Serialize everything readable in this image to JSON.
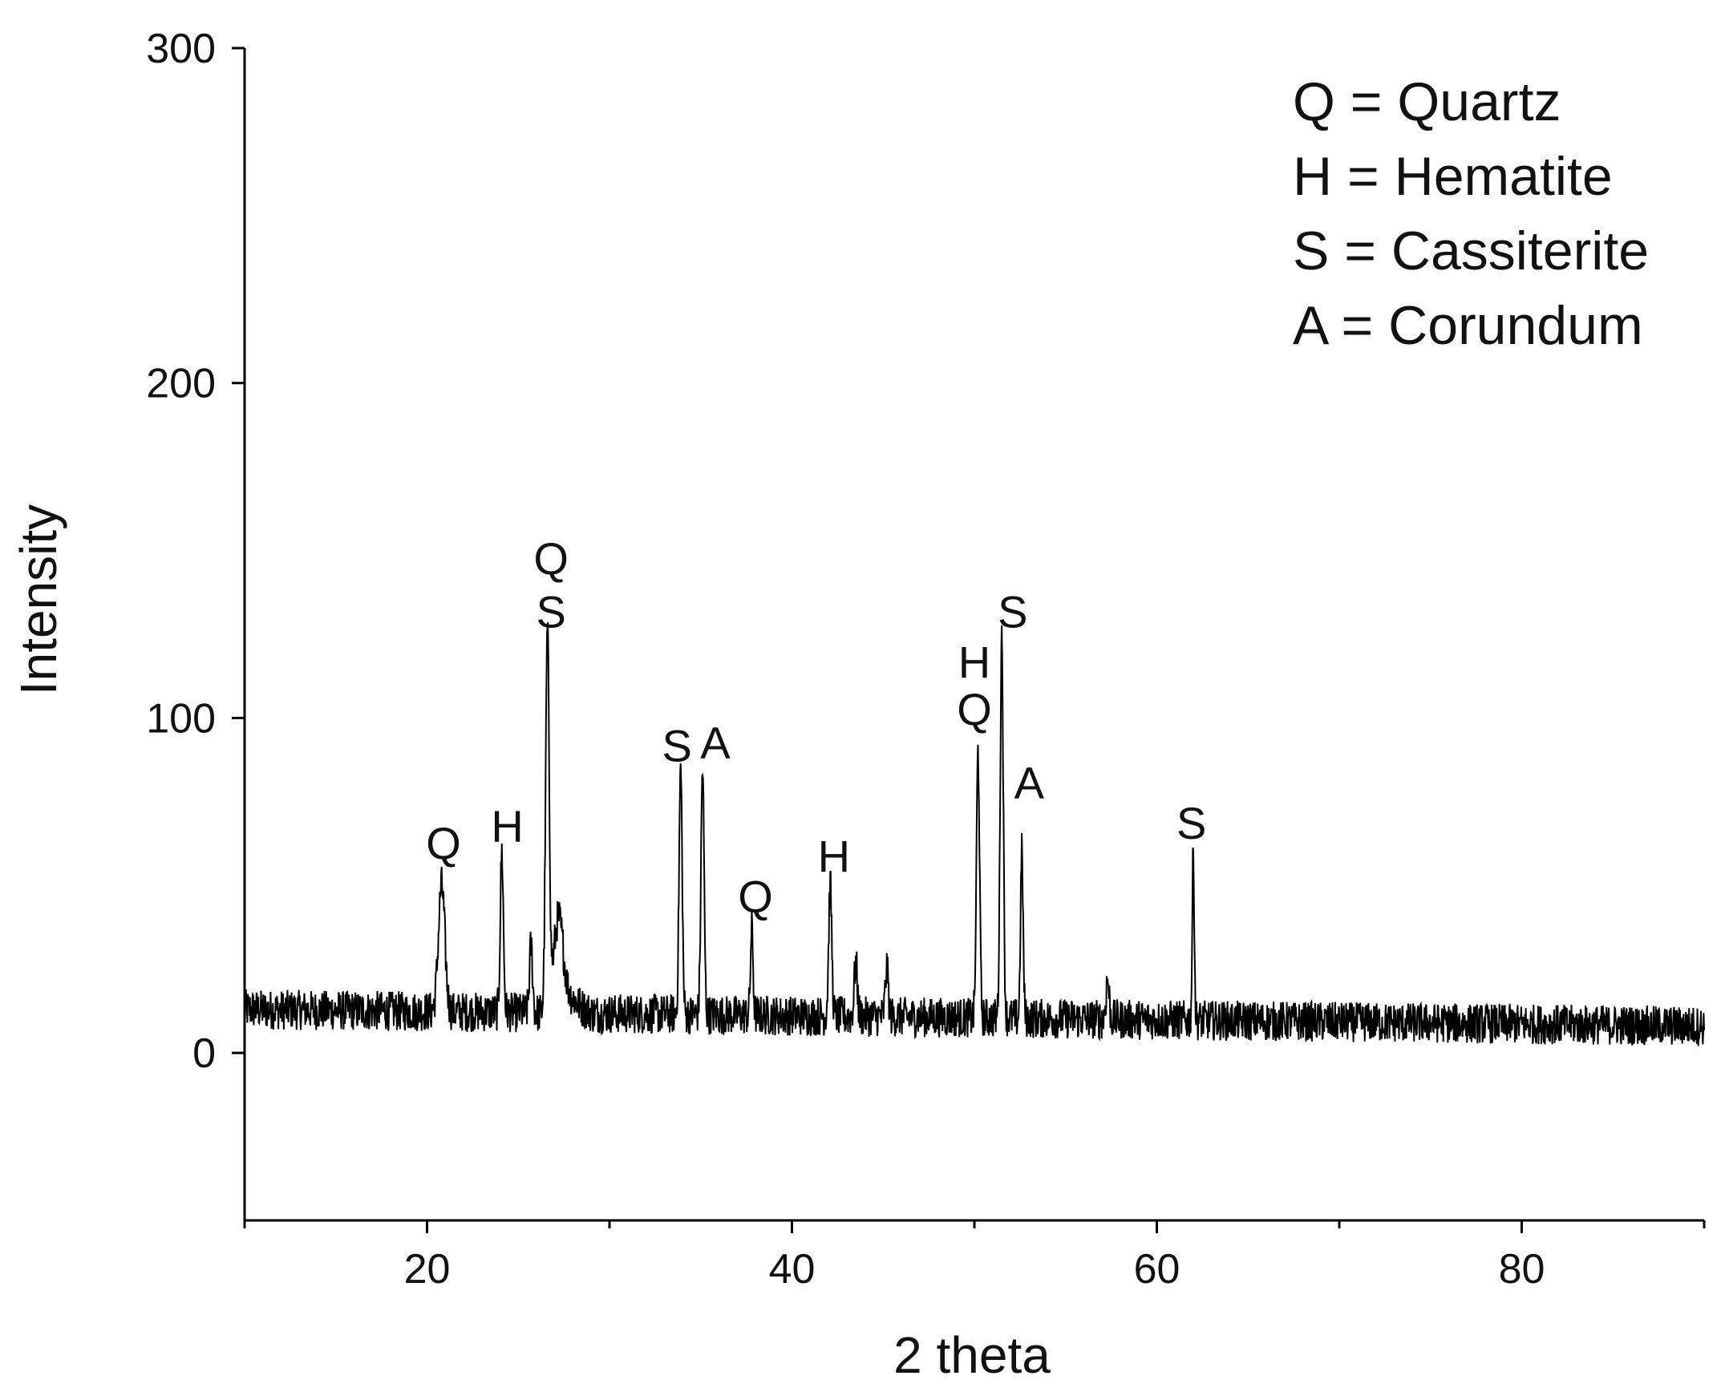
{
  "chart_data": {
    "type": "line",
    "title": "",
    "xlabel": "2 theta",
    "ylabel": "Intensity",
    "xlim": [
      10,
      90
    ],
    "ylim": [
      -50,
      300
    ],
    "x_ticks": [
      20,
      40,
      60,
      80
    ],
    "x_minor_ticks": [
      10,
      30,
      50,
      70,
      90
    ],
    "y_ticks": [
      0,
      100,
      200,
      300
    ],
    "grid": false,
    "legend_position": "top-right",
    "legend": [
      "Q = Quartz",
      "H = Hematite",
      "S = Cassiterite",
      "A = Corundum"
    ],
    "baseline": {
      "start": 13,
      "end": 8,
      "noise_amplitude": 6
    },
    "peaks": [
      {
        "x": 20.8,
        "y": 50,
        "width": 0.25
      },
      {
        "x": 24.1,
        "y": 60,
        "width": 0.12
      },
      {
        "x": 25.7,
        "y": 32,
        "width": 0.12
      },
      {
        "x": 26.6,
        "y": 125,
        "width": 0.14
      },
      {
        "x": 27.2,
        "y": 35,
        "width": 0.35
      },
      {
        "x": 33.9,
        "y": 85,
        "width": 0.12
      },
      {
        "x": 35.1,
        "y": 85,
        "width": 0.12
      },
      {
        "x": 37.8,
        "y": 37,
        "width": 0.1
      },
      {
        "x": 42.1,
        "y": 50,
        "width": 0.12
      },
      {
        "x": 43.5,
        "y": 27,
        "width": 0.12
      },
      {
        "x": 45.2,
        "y": 25,
        "width": 0.12
      },
      {
        "x": 50.2,
        "y": 90,
        "width": 0.12
      },
      {
        "x": 51.5,
        "y": 125,
        "width": 0.12
      },
      {
        "x": 52.6,
        "y": 60,
        "width": 0.1
      },
      {
        "x": 57.3,
        "y": 22,
        "width": 0.12
      },
      {
        "x": 62.0,
        "y": 60,
        "width": 0.08
      }
    ],
    "annotations": [
      {
        "text": "Q",
        "x": 20.9,
        "y": 58
      },
      {
        "text": "H",
        "x": 24.4,
        "y": 63
      },
      {
        "text": "Q",
        "x": 26.8,
        "y": 143
      },
      {
        "text": "S",
        "x": 26.8,
        "y": 127
      },
      {
        "text": "S",
        "x": 33.7,
        "y": 87
      },
      {
        "text": "A",
        "x": 35.8,
        "y": 88
      },
      {
        "text": "Q",
        "x": 38.0,
        "y": 42
      },
      {
        "text": "H",
        "x": 42.3,
        "y": 54
      },
      {
        "text": "H",
        "x": 50.0,
        "y": 112
      },
      {
        "text": "Q",
        "x": 50.0,
        "y": 98
      },
      {
        "text": "S",
        "x": 52.1,
        "y": 127
      },
      {
        "text": "A",
        "x": 53.0,
        "y": 76
      },
      {
        "text": "S",
        "x": 61.9,
        "y": 64
      }
    ]
  }
}
